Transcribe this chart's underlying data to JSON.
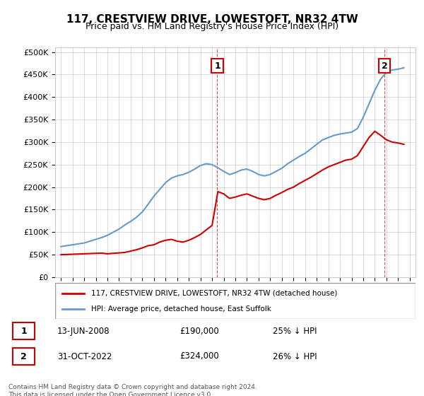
{
  "title": "117, CRESTVIEW DRIVE, LOWESTOFT, NR32 4TW",
  "subtitle": "Price paid vs. HM Land Registry's House Price Index (HPI)",
  "ylabel_format": "£{0}K",
  "yticks": [
    0,
    50000,
    100000,
    150000,
    200000,
    250000,
    300000,
    350000,
    400000,
    450000,
    500000
  ],
  "ytick_labels": [
    "£0",
    "£50K",
    "£100K",
    "£150K",
    "£200K",
    "£250K",
    "£300K",
    "£350K",
    "£400K",
    "£450K",
    "£500K"
  ],
  "xlim_start": 1994.5,
  "xlim_end": 2025.5,
  "ylim_min": 0,
  "ylim_max": 510000,
  "line1_color": "#cc0000",
  "line2_color": "#6699cc",
  "marker1_date": 2008.45,
  "marker1_value": 190000,
  "marker2_date": 2022.83,
  "marker2_value": 324000,
  "annotation1_label": "1",
  "annotation2_label": "2",
  "legend_line1": "117, CRESTVIEW DRIVE, LOWESTOFT, NR32 4TW (detached house)",
  "legend_line2": "HPI: Average price, detached house, East Suffolk",
  "table_row1": [
    "1",
    "13-JUN-2008",
    "£190,000",
    "25% ↓ HPI"
  ],
  "table_row2": [
    "2",
    "31-OCT-2022",
    "£324,000",
    "26% ↓ HPI"
  ],
  "footnote": "Contains HM Land Registry data © Crown copyright and database right 2024.\nThis data is licensed under the Open Government Licence v3.0.",
  "hpi_data": {
    "years": [
      1995,
      1995.5,
      1996,
      1996.5,
      1997,
      1997.5,
      1998,
      1998.5,
      1999,
      1999.5,
      2000,
      2000.5,
      2001,
      2001.5,
      2002,
      2002.5,
      2003,
      2003.5,
      2004,
      2004.5,
      2005,
      2005.5,
      2006,
      2006.5,
      2007,
      2007.5,
      2008,
      2008.5,
      2009,
      2009.5,
      2010,
      2010.5,
      2011,
      2011.5,
      2012,
      2012.5,
      2013,
      2013.5,
      2014,
      2014.5,
      2015,
      2015.5,
      2016,
      2016.5,
      2017,
      2017.5,
      2018,
      2018.5,
      2019,
      2019.5,
      2020,
      2020.5,
      2021,
      2021.5,
      2022,
      2022.5,
      2023,
      2023.5,
      2024,
      2024.5
    ],
    "values": [
      68000,
      70000,
      72000,
      74000,
      76000,
      80000,
      84000,
      88000,
      93000,
      100000,
      107000,
      116000,
      124000,
      133000,
      145000,
      162000,
      180000,
      195000,
      210000,
      220000,
      225000,
      228000,
      233000,
      240000,
      248000,
      252000,
      250000,
      243000,
      235000,
      228000,
      232000,
      238000,
      240000,
      235000,
      228000,
      225000,
      228000,
      235000,
      242000,
      252000,
      260000,
      268000,
      275000,
      285000,
      295000,
      305000,
      310000,
      315000,
      318000,
      320000,
      322000,
      330000,
      355000,
      385000,
      415000,
      440000,
      455000,
      460000,
      462000,
      465000
    ]
  },
  "sold_data": {
    "years": [
      1995,
      1999,
      2001,
      2003,
      2005,
      2008.45,
      2022.83
    ],
    "values": [
      50000,
      52000,
      58000,
      72000,
      80000,
      190000,
      324000
    ]
  },
  "price_line_data": {
    "years": [
      1995,
      1995.5,
      1996,
      1996.5,
      1997,
      1997.5,
      1998,
      1998.5,
      1999,
      1999.5,
      2000,
      2000.5,
      2001,
      2001.5,
      2002,
      2002.5,
      2003,
      2003.5,
      2004,
      2004.5,
      2005,
      2005.5,
      2006,
      2006.5,
      2007,
      2007.5,
      2008,
      2008.5,
      2009,
      2009.5,
      2010,
      2010.5,
      2011,
      2011.5,
      2012,
      2012.5,
      2013,
      2013.5,
      2014,
      2014.5,
      2015,
      2015.5,
      2016,
      2016.5,
      2017,
      2017.5,
      2018,
      2018.5,
      2019,
      2019.5,
      2020,
      2020.5,
      2021,
      2021.5,
      2022,
      2022.5,
      2023,
      2023.5,
      2024,
      2024.5
    ],
    "values": [
      50000,
      50500,
      51000,
      51500,
      52000,
      52500,
      53000,
      53500,
      52000,
      53000,
      54000,
      55000,
      58000,
      61000,
      65000,
      70000,
      72000,
      78000,
      82000,
      84000,
      80000,
      78000,
      82000,
      88000,
      95000,
      105000,
      115000,
      190000,
      185000,
      175000,
      178000,
      182000,
      185000,
      180000,
      175000,
      172000,
      175000,
      182000,
      188000,
      195000,
      200000,
      208000,
      215000,
      222000,
      230000,
      238000,
      245000,
      250000,
      255000,
      260000,
      262000,
      270000,
      290000,
      310000,
      324000,
      315000,
      305000,
      300000,
      298000,
      295000
    ]
  }
}
